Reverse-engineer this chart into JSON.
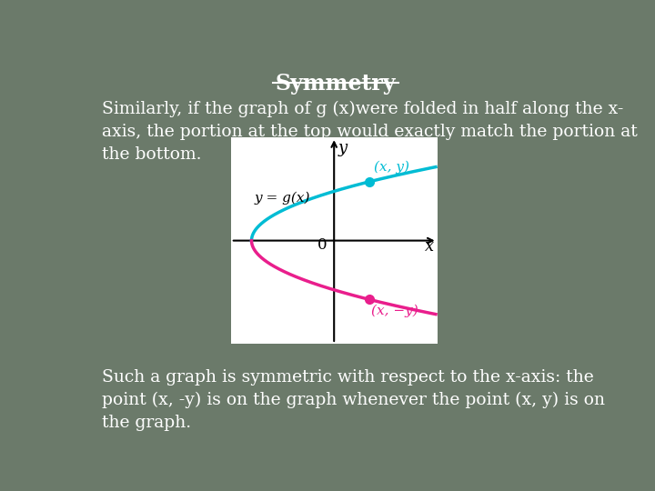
{
  "title": "Symmetry",
  "background_color": "#6b7a6a",
  "text_color": "#ffffff",
  "top_text": "Similarly, if the graph of g (x)were folded in half along the x-\naxis, the portion at the top would exactly match the portion at\nthe bottom.",
  "bottom_text": "Such a graph is symmetric with respect to the x-axis: the\npoint (x, -y) is on the graph whenever the point (x, y) is on\nthe graph.",
  "curve_color_top": "#00bcd4",
  "curve_color_bottom": "#e91e8c",
  "label_top": "(x, y)",
  "label_bottom": "(x, −y)",
  "label_curve": "y = g(x)",
  "axes_label_x": "x",
  "axes_label_y": "y",
  "zero_label": "0"
}
